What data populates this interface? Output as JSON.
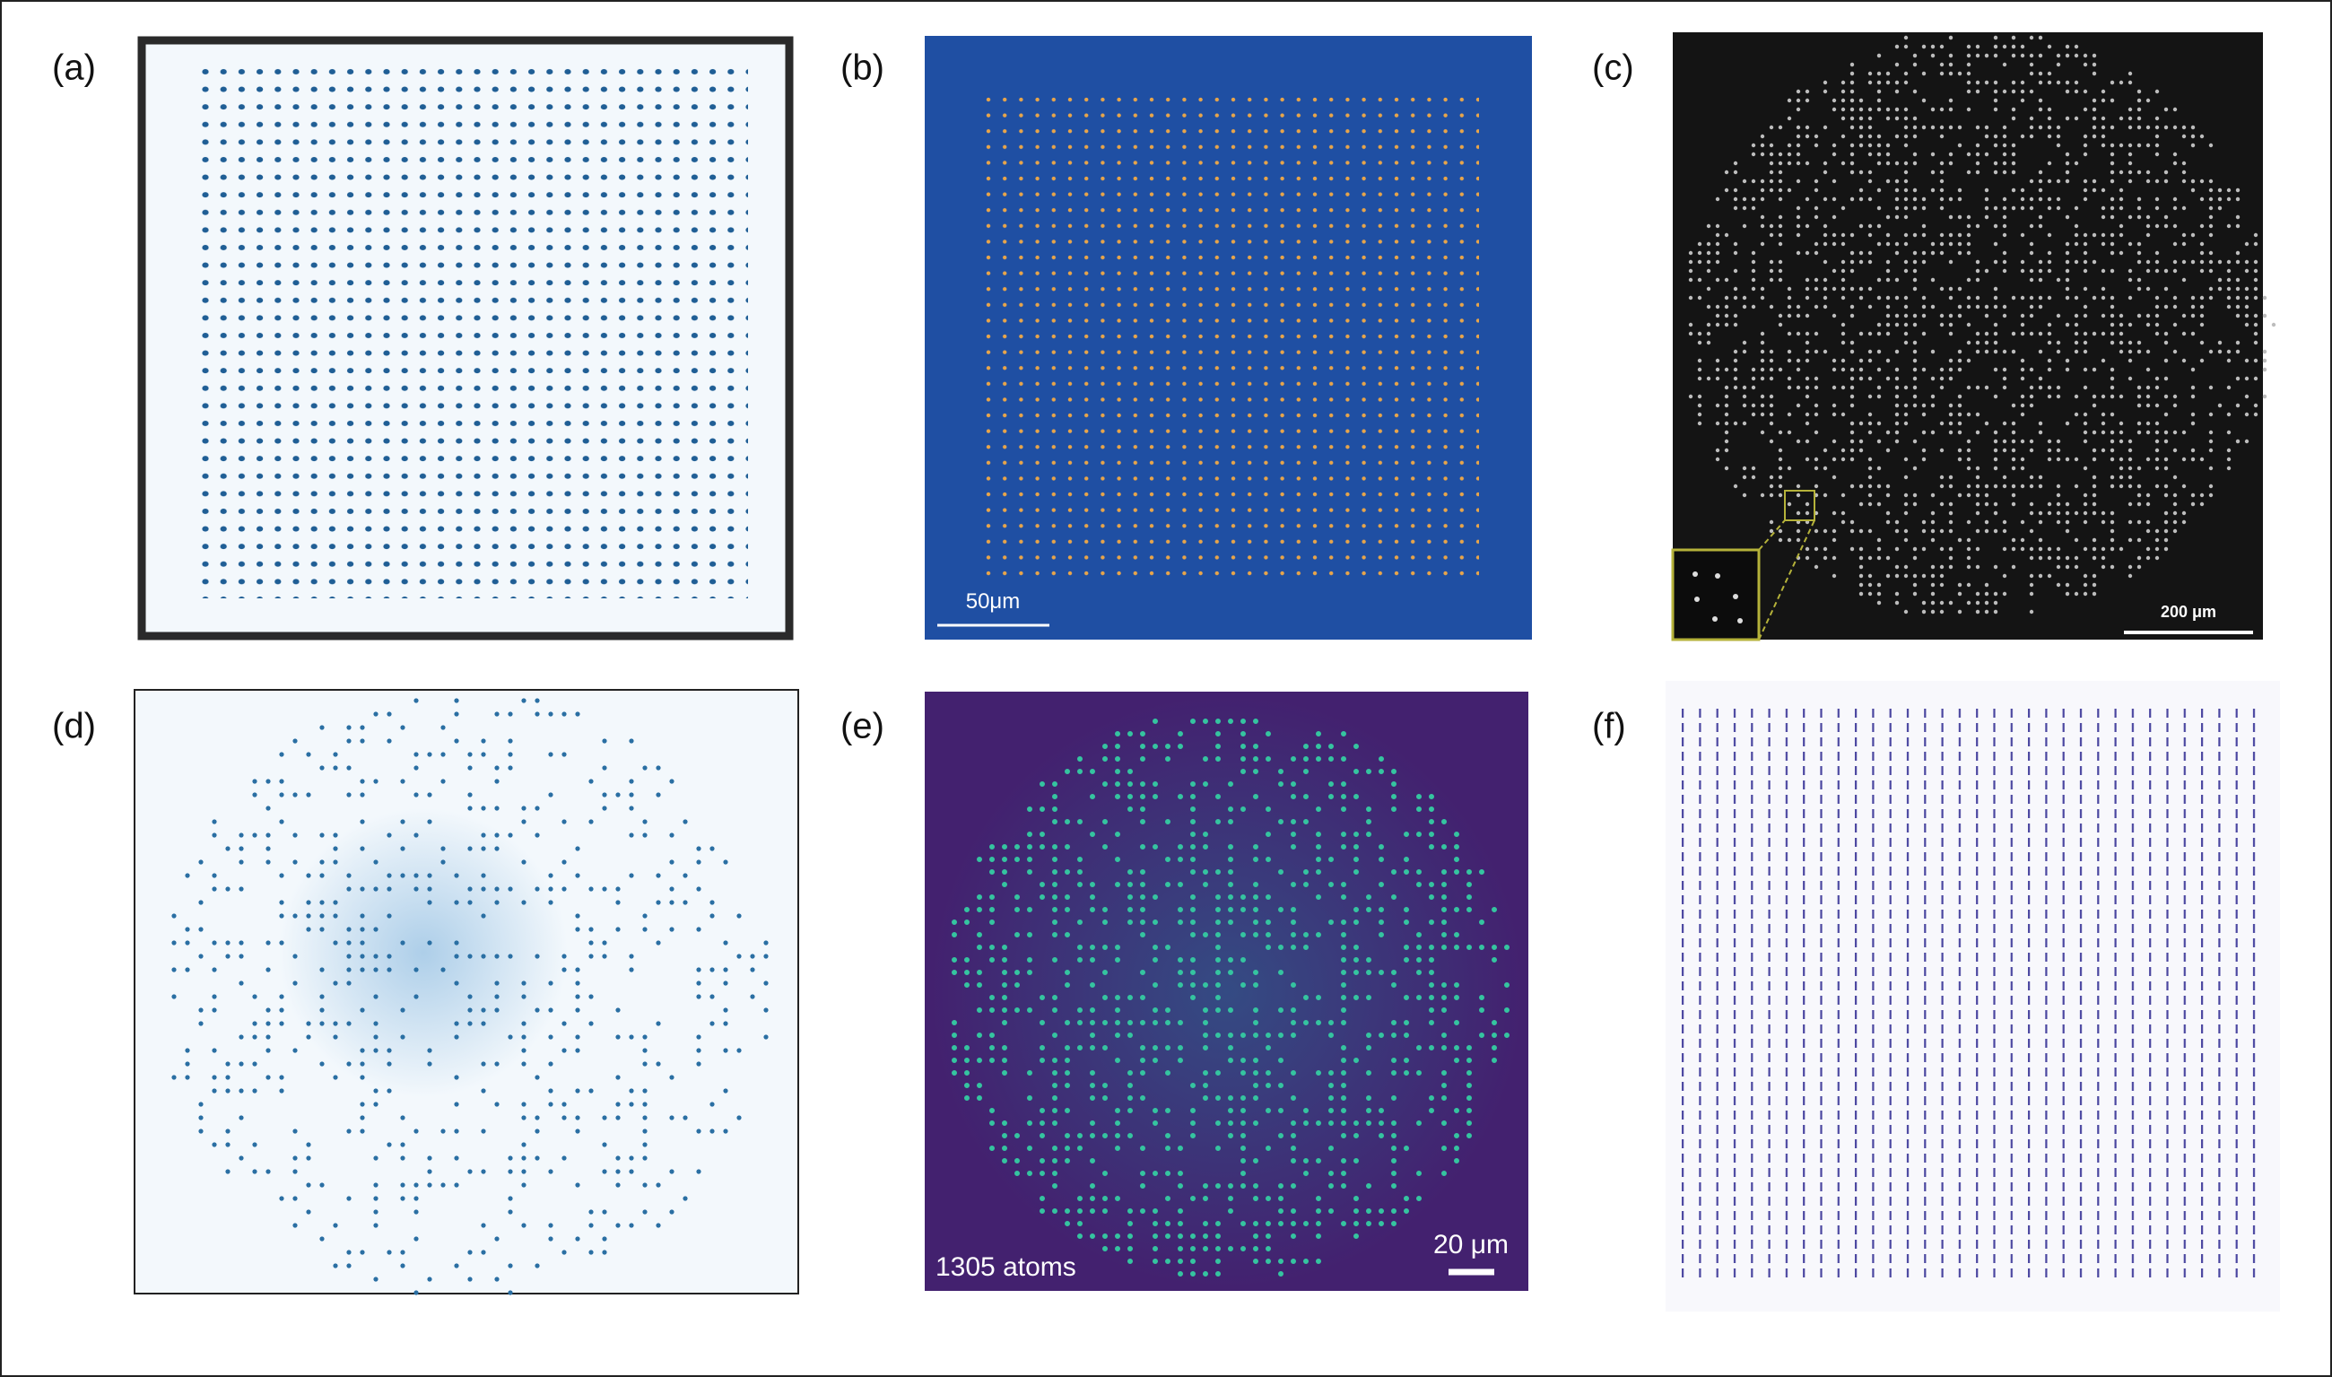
{
  "panels": [
    {
      "label": "(a)"
    },
    {
      "label": "(b)",
      "scale_bar": "50μm"
    },
    {
      "label": "(c)",
      "scale_bar": "200 μm"
    },
    {
      "label": "(d)"
    },
    {
      "label": "(e)",
      "scale_bar": "20 μm",
      "caption": "1305 atoms"
    },
    {
      "label": "(f)"
    }
  ]
}
